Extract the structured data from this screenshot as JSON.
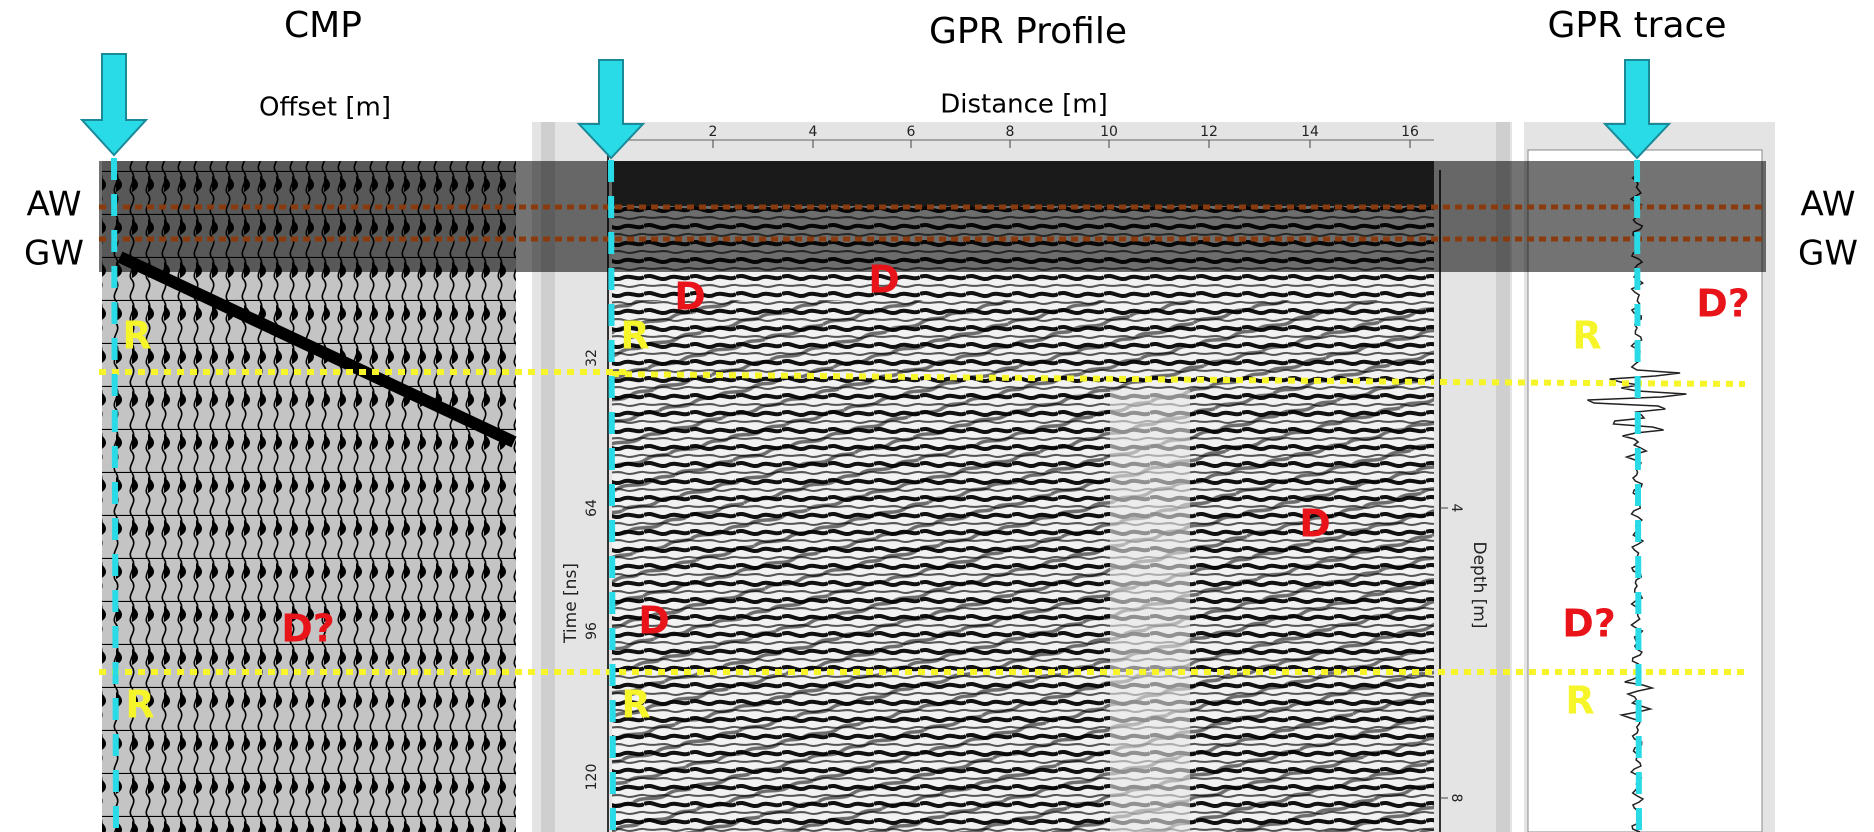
{
  "panels": [
    {
      "title": "CMP",
      "axis_label": "Offset [m]"
    },
    {
      "title": "GPR Profile",
      "axis_label": "Distance [m]",
      "distance_ticks": [
        "2",
        "4",
        "6",
        "8",
        "10",
        "12",
        "14",
        "16"
      ],
      "time_axis_label": "Time [ns]",
      "time_ticks": [
        "32",
        "64",
        "96",
        "120"
      ],
      "depth_axis_label": "Depth [m]",
      "depth_ticks": [
        "4",
        "8"
      ]
    },
    {
      "title": "GPR trace"
    }
  ],
  "side_labels": {
    "left": [
      "AW",
      "GW"
    ],
    "right": [
      "AW",
      "GW"
    ]
  },
  "annotations": [
    "R",
    "R",
    "R",
    "R",
    "R",
    "R",
    "D",
    "D",
    "D",
    "D",
    "D?",
    "D?",
    "D?"
  ]
}
